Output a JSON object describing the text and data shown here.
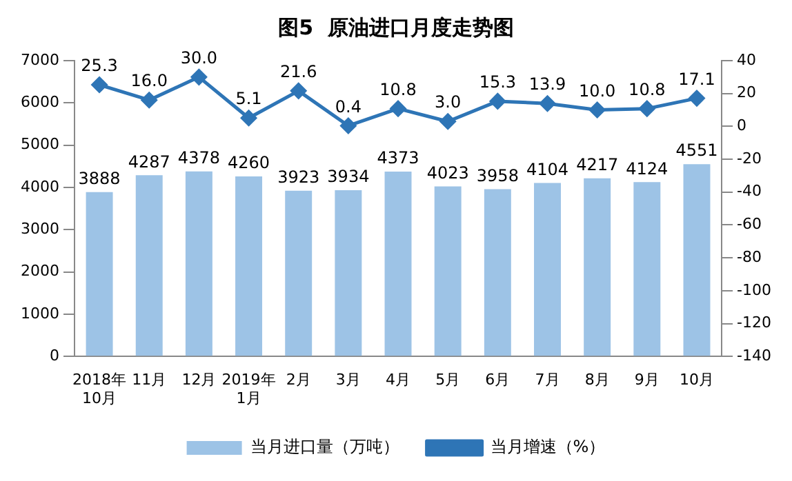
{
  "chart_data": {
    "type": "bar",
    "title": "图5  原油进口月度走势图",
    "categories": [
      "2018年10月",
      "11月",
      "12月",
      "2019年1月",
      "2月",
      "3月",
      "4月",
      "5月",
      "6月",
      "7月",
      "8月",
      "9月",
      "10月"
    ],
    "series": [
      {
        "name": "当月进口量（万吨）",
        "color": "#9dc3e6",
        "values": [
          3888,
          4287,
          4378,
          4260,
          3923,
          3934,
          4373,
          4023,
          3958,
          4104,
          4217,
          4124,
          4551
        ]
      },
      {
        "name": "当月增速（%）",
        "type": "line",
        "axis": "y2",
        "color": "#2e75b6",
        "values": [
          25.3,
          16.0,
          30.0,
          5.1,
          21.6,
          0.4,
          10.8,
          3.0,
          15.3,
          13.9,
          10.0,
          10.8,
          17.1
        ],
        "value_labels": [
          "25.3",
          "16.0",
          "30.0",
          "5.1",
          "21.6",
          "0.4",
          "10.8",
          "3.0",
          "15.3",
          "13.9",
          "10.0",
          "10.8",
          "17.1"
        ]
      }
    ],
    "ylim": [
      0,
      7000
    ],
    "yticks": [
      0,
      1000,
      2000,
      3000,
      4000,
      5000,
      6000,
      7000
    ],
    "y2lim": [
      -140,
      40
    ],
    "y2ticks": [
      -140,
      -120,
      -100,
      -80,
      -60,
      -40,
      -20,
      0,
      20,
      40
    ],
    "data_labels": true,
    "legend": "bottom",
    "grid": false,
    "marker": "diamond",
    "line_style": "solid"
  }
}
